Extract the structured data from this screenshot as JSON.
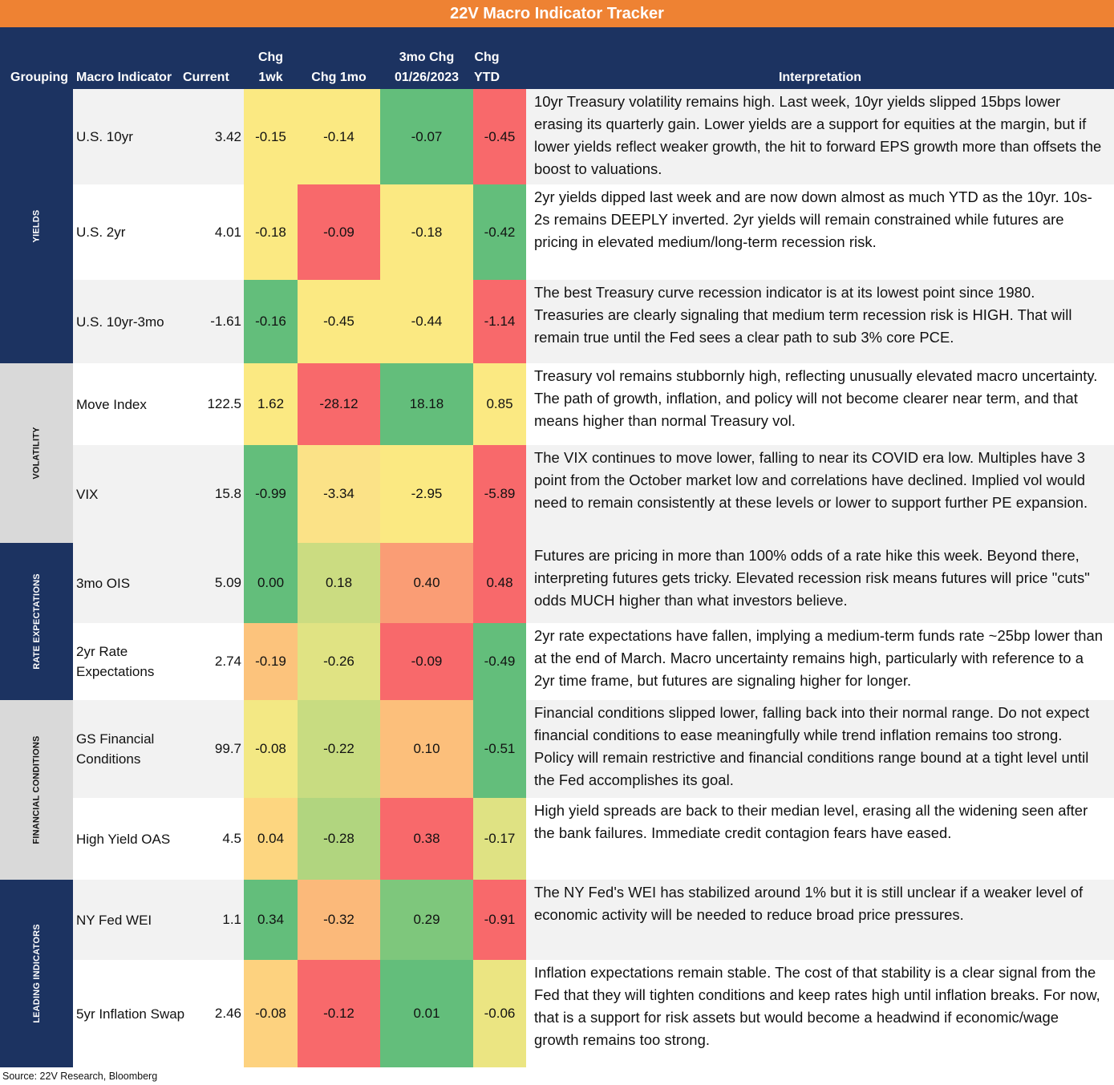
{
  "title": "22V Macro Indicator Tracker",
  "headers": {
    "grouping": "Grouping",
    "indicator": "Macro Indicator",
    "current": "Current",
    "chg1wk_l1": "Chg",
    "chg1wk_l2": "1wk",
    "chg1mo": "Chg 1mo",
    "chg3mo_l1": "3mo Chg",
    "chg3mo_l2": "01/26/2023",
    "ytd_l1": "Chg",
    "ytd_l2": "YTD",
    "interpretation": "Interpretation"
  },
  "groups": [
    {
      "label": "YIELDS"
    },
    {
      "label": "VOLATILITY"
    },
    {
      "label": "RATE EXPECTATIONS"
    },
    {
      "label": "FINANCIAL CONDITIONS"
    },
    {
      "label": "LEADING INDICATORS"
    }
  ],
  "rows": [
    {
      "indicator": "U.S. 10yr",
      "current": "3.42",
      "chg1wk": "-0.15",
      "chg1mo": "-0.14",
      "chg3mo": "-0.07",
      "ytd": "-0.45",
      "interp": "10yr Treasury volatility remains high. Last week, 10yr yields slipped 15bps lower erasing its quarterly gain. Lower yields are a support for equities at the margin, but if lower yields reflect weaker growth, the hit to forward EPS growth more than offsets the boost to valuations.",
      "colors": [
        "#fbe982",
        "#fbe982",
        "#63be7b",
        "#f8696b"
      ]
    },
    {
      "indicator": "U.S. 2yr",
      "current": "4.01",
      "chg1wk": "-0.18",
      "chg1mo": "-0.09",
      "chg3mo": "-0.18",
      "ytd": "-0.42",
      "interp": "2yr yields dipped last week and are now down almost as much YTD as the 10yr. 10s-2s remains DEEPLY inverted. 2yr yields will remain constrained while futures are pricing in elevated medium/long-term recession risk.",
      "colors": [
        "#fbe982",
        "#f8696b",
        "#fbe982",
        "#63be7b"
      ]
    },
    {
      "indicator": "U.S. 10yr-3mo",
      "current": "-1.61",
      "chg1wk": "-0.16",
      "chg1mo": "-0.45",
      "chg3mo": "-0.44",
      "ytd": "-1.14",
      "interp": "The best Treasury curve recession indicator is at its lowest point since 1980. Treasuries are clearly signaling that medium term recession risk is HIGH. That will remain true until the Fed sees a clear path to sub 3% core PCE.",
      "colors": [
        "#63be7b",
        "#fbe982",
        "#fbe982",
        "#f8696b"
      ]
    },
    {
      "indicator": "Move Index",
      "current": "122.5",
      "chg1wk": "1.62",
      "chg1mo": "-28.12",
      "chg3mo": "18.18",
      "ytd": "0.85",
      "interp": "Treasury vol remains stubbornly high, reflecting unusually elevated macro uncertainty. The path of growth, inflation, and policy will not become clearer near term, and that means higher than normal Treasury vol.",
      "colors": [
        "#fbe982",
        "#f8696b",
        "#63be7b",
        "#fbe982"
      ]
    },
    {
      "indicator": "VIX",
      "current": "15.8",
      "chg1wk": "-0.99",
      "chg1mo": "-3.34",
      "chg3mo": "-2.95",
      "ytd": "-5.89",
      "interp": "The VIX continues to move lower, falling to near its COVID era low. Multiples have 3 point from the October market low and correlations have declined. Implied vol would need to remain consistently at these levels or lower to support further PE expansion.",
      "colors": [
        "#63be7b",
        "#fbe287",
        "#fbe982",
        "#f8696b"
      ]
    },
    {
      "indicator": "3mo OIS",
      "current": "5.09",
      "chg1wk": "0.00",
      "chg1mo": "0.18",
      "chg3mo": "0.40",
      "ytd": "0.48",
      "interp": "Futures are pricing in more than 100% odds of a rate hike this week. Beyond there, interpreting futures gets tricky. Elevated recession risk means futures will price \"cuts\" odds MUCH higher than what investors believe.",
      "colors": [
        "#63be7b",
        "#cbdc81",
        "#fa9d75",
        "#f8696b"
      ]
    },
    {
      "indicator": "2yr Rate Expectations",
      "current": "2.74",
      "chg1wk": "-0.19",
      "chg1mo": "-0.26",
      "chg3mo": "-0.09",
      "ytd": "-0.49",
      "interp": "2yr rate expectations have fallen, implying a medium-term funds rate ~25bp lower than at the end of March. Macro uncertainty remains high, particularly with reference to a 2yr time frame, but futures are signaling higher for longer.",
      "colors": [
        "#fcc37c",
        "#e0e383",
        "#f8696b",
        "#63be7b"
      ]
    },
    {
      "indicator": "GS Financial Conditions",
      "current": "99.7",
      "chg1wk": "-0.08",
      "chg1mo": "-0.22",
      "chg3mo": "0.10",
      "ytd": "-0.51",
      "interp": "Financial conditions slipped lower, falling back into their normal range. Do not expect financial conditions to ease meaningfully while trend inflation remains too strong. Policy will remain restrictive and financial conditions range bound at a tight level until the Fed accomplishes its goal.",
      "colors": [
        "#f3e884",
        "#c8dc81",
        "#fcbf7b",
        "#63be7b"
      ]
    },
    {
      "indicator": "High Yield OAS",
      "current": "4.5",
      "chg1wk": "0.04",
      "chg1mo": "-0.28",
      "chg3mo": "0.38",
      "ytd": "-0.17",
      "interp": "High yield spreads are back to their median level, erasing all the widening seen after the bank failures. Immediate credit contagion fears have eased.",
      "colors": [
        "#fdd680",
        "#b1d57f",
        "#f8696b",
        "#dfe283"
      ]
    },
    {
      "indicator": "NY Fed WEI",
      "current": "1.1",
      "chg1wk": "0.34",
      "chg1mo": "-0.32",
      "chg3mo": "0.29",
      "ytd": "-0.91",
      "interp": "The NY Fed's WEI has stabilized around 1% but it is still unclear if a weaker level of economic activity will be needed to reduce broad price pressures.",
      "colors": [
        "#63be7b",
        "#fbb97a",
        "#7ec77c",
        "#f8696b"
      ]
    },
    {
      "indicator": "5yr Inflation Swap",
      "current": "2.46",
      "chg1wk": "-0.08",
      "chg1mo": "-0.12",
      "chg3mo": "0.01",
      "ytd": "-0.06",
      "interp": "Inflation expectations remain stable. The cost of that stability is a clear signal from the Fed that they will tighten conditions and keep rates high until inflation breaks. For now, that is a support for risk assets but would become a headwind if economic/wage growth remains too strong.",
      "colors": [
        "#fdd27f",
        "#f8696b",
        "#63be7b",
        "#ebe582"
      ]
    }
  ],
  "footer": "Source: 22V Research, Bloomberg"
}
